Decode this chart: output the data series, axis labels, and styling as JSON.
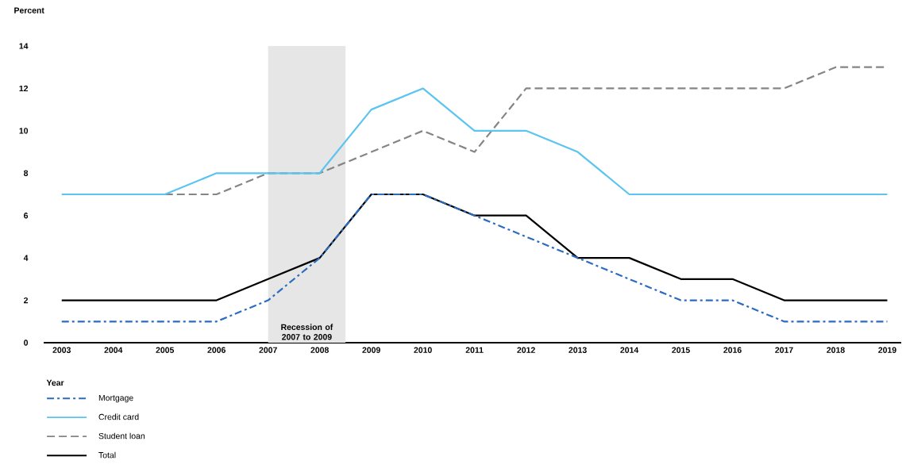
{
  "chart_data": {
    "type": "line",
    "ylabel": "Percent",
    "xlabel": "Year",
    "x": [
      2003,
      2004,
      2005,
      2006,
      2007,
      2008,
      2009,
      2010,
      2011,
      2012,
      2013,
      2014,
      2015,
      2016,
      2017,
      2018,
      2019
    ],
    "xlim": [
      2002.65,
      2019.27
    ],
    "xticks": [
      2003,
      2004,
      2005,
      2006,
      2007,
      2008,
      2009,
      2010,
      2011,
      2012,
      2013,
      2014,
      2015,
      2016,
      2017,
      2018,
      2019
    ],
    "ylim": [
      0,
      14
    ],
    "yticks": [
      0,
      2,
      4,
      6,
      8,
      10,
      12,
      14
    ],
    "series": [
      {
        "name": "Mortgage",
        "color": "#2b6cc0",
        "line_style": "dashdot",
        "values": [
          1,
          1,
          1,
          1,
          2,
          4,
          7,
          7,
          6,
          5,
          4,
          3,
          2,
          2,
          1,
          1,
          1
        ]
      },
      {
        "name": "Credit card",
        "color": "#5bc4f0",
        "line_style": "solid",
        "values": [
          7,
          7,
          7,
          8,
          8,
          8,
          11,
          12,
          10,
          10,
          9,
          7,
          7,
          7,
          7,
          7,
          7
        ]
      },
      {
        "name": "Student loan",
        "color": "#858585",
        "line_style": "dashed",
        "values": [
          null,
          null,
          7,
          7,
          8,
          8,
          9,
          10,
          9,
          12,
          12,
          12,
          12,
          12,
          12,
          13,
          13
        ]
      },
      {
        "name": "Total",
        "color": "#000000",
        "line_style": "solid",
        "values": [
          2,
          2,
          2,
          2,
          3,
          4,
          7,
          7,
          6,
          6,
          4,
          4,
          3,
          3,
          2,
          2,
          2
        ]
      }
    ],
    "bands": [
      {
        "axis": "x",
        "from": 2007,
        "to": 2008.5,
        "label": "Recession of 2007 to 2009",
        "color": "#e6e6e6"
      }
    ],
    "grid": false,
    "legend": "bottom",
    "marker": "none"
  }
}
